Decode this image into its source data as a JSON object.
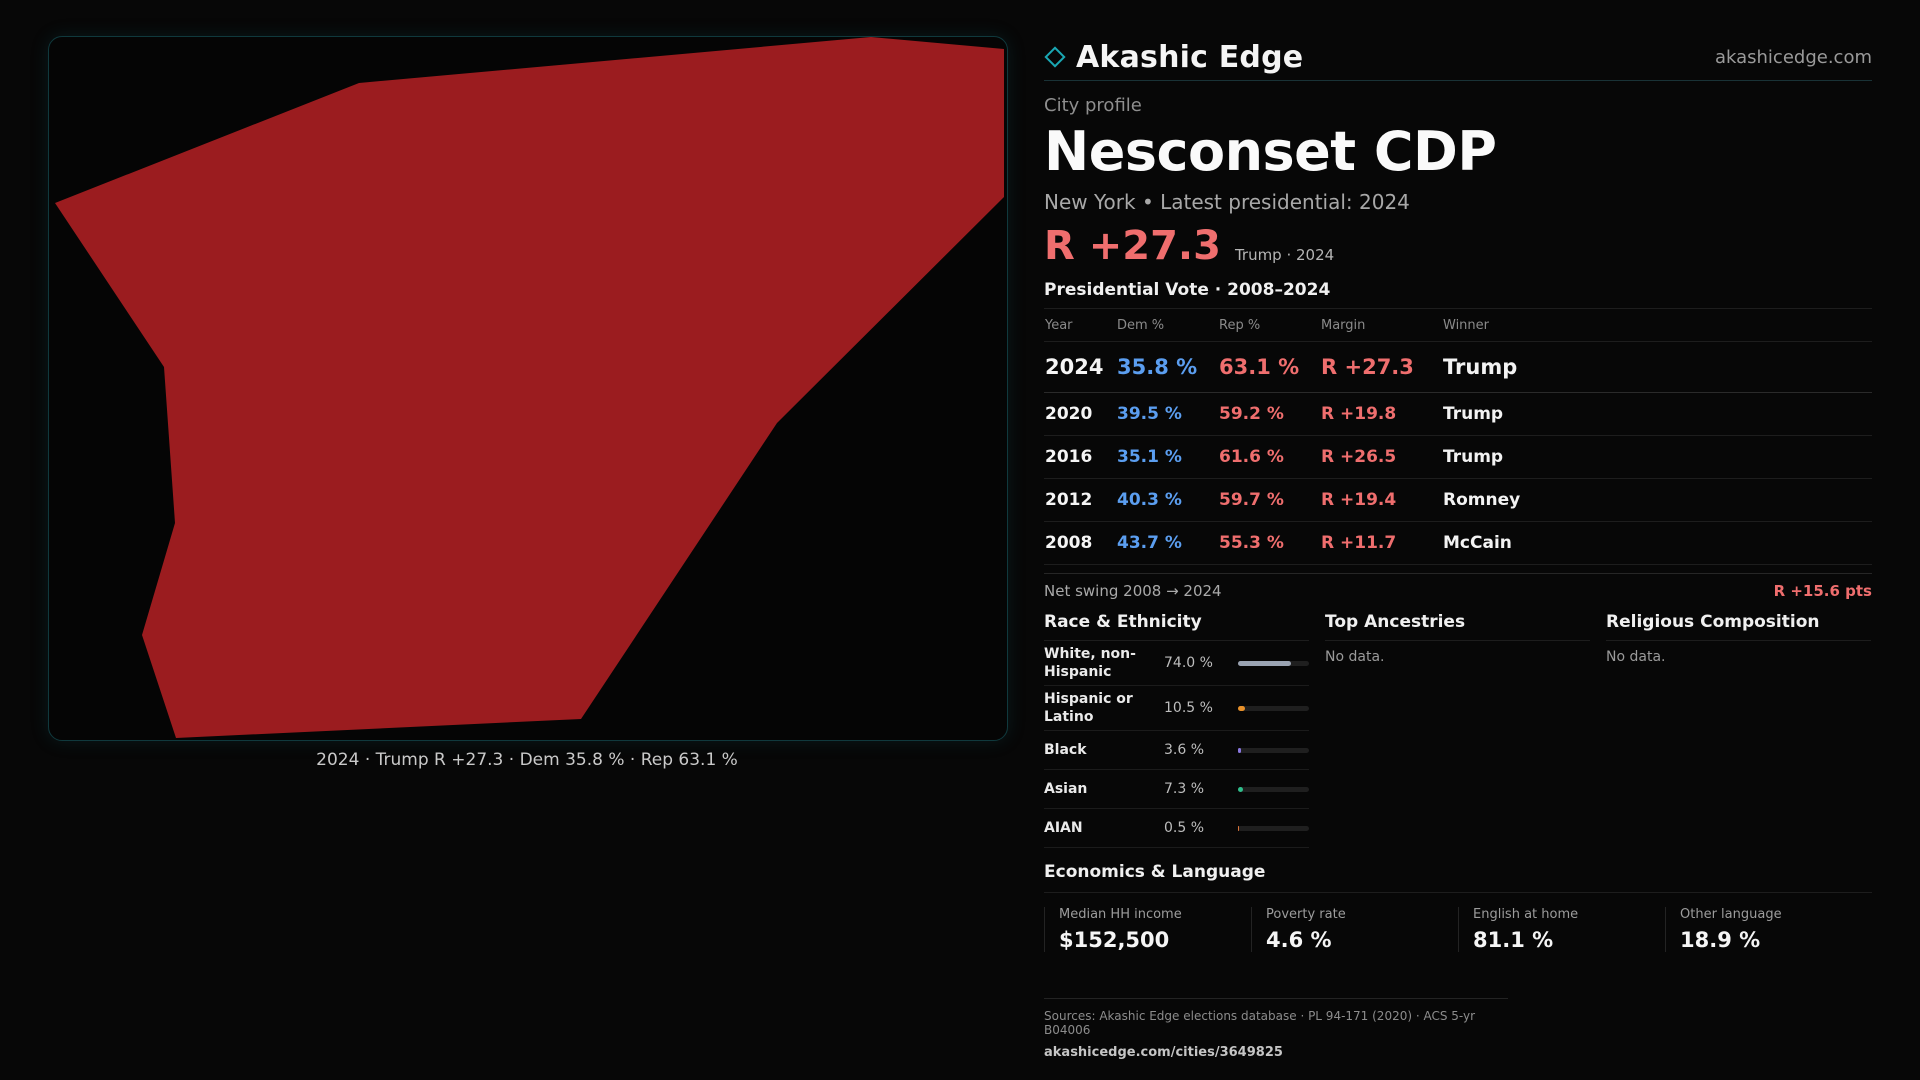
{
  "map": {
    "fill_color": "#9b1c1f",
    "caption": "2024 · Trump R +27.3 · Dem 35.8 % · Rep 63.1 %"
  },
  "header": {
    "brand": "Akashic Edge",
    "site": "akashicedge.com",
    "brand_icon": "diamond-outline-icon",
    "accent": "#1aa7b3"
  },
  "profile": {
    "kicker": "City profile",
    "title": "Nesconset CDP",
    "subline": "New York  • Latest presidential: 2024",
    "margin": "R +27.3",
    "margin_note": "Trump · 2024"
  },
  "votes": {
    "title": "Presidential Vote · 2008–2024",
    "headers": {
      "year": "Year",
      "dem": "Dem %",
      "rep": "Rep %",
      "margin": "Margin",
      "winner": "Winner"
    },
    "rows": [
      {
        "year": "2024",
        "dem": "35.8 %",
        "rep": "63.1 %",
        "margin": "R +27.3",
        "winner": "Trump"
      },
      {
        "year": "2020",
        "dem": "39.5 %",
        "rep": "59.2 %",
        "margin": "R +19.8",
        "winner": "Trump"
      },
      {
        "year": "2016",
        "dem": "35.1 %",
        "rep": "61.6 %",
        "margin": "R +26.5",
        "winner": "Trump"
      },
      {
        "year": "2012",
        "dem": "40.3 %",
        "rep": "59.7 %",
        "margin": "R +19.4",
        "winner": "Romney"
      },
      {
        "year": "2008",
        "dem": "43.7 %",
        "rep": "55.3 %",
        "margin": "R +11.7",
        "winner": "McCain"
      }
    ],
    "swing_label": "Net swing 2008 → 2024",
    "swing_value": "R +15.6 pts"
  },
  "race": {
    "title": "Race & Ethnicity",
    "rows": [
      {
        "label": "White, non-Hispanic",
        "pct": "74.0 %",
        "value": 74.0,
        "color": "#9aa3b2"
      },
      {
        "label": "Hispanic or Latino",
        "pct": "10.5 %",
        "value": 10.5,
        "color": "#e8912a"
      },
      {
        "label": "Black",
        "pct": "3.6 %",
        "value": 3.6,
        "color": "#8a78e0"
      },
      {
        "label": "Asian",
        "pct": "7.3 %",
        "value": 7.3,
        "color": "#2fbf8c"
      },
      {
        "label": "AIAN",
        "pct": "0.5 %",
        "value": 0.5,
        "color": "#d9733a"
      }
    ]
  },
  "ancestries": {
    "title": "Top Ancestries",
    "empty": "No data."
  },
  "religion": {
    "title": "Religious Composition",
    "empty": "No data."
  },
  "economics": {
    "title": "Economics & Language",
    "cells": [
      {
        "label": "Median HH income",
        "value": "$152,500"
      },
      {
        "label": "Poverty rate",
        "value": "4.6 %"
      },
      {
        "label": "English at home",
        "value": "81.1 %"
      },
      {
        "label": "Other language",
        "value": "18.9 %"
      }
    ]
  },
  "footer": {
    "sources": "Sources: Akashic Edge elections database · PL 94-171 (2020) · ACS 5-yr B04006",
    "url": "akashicedge.com/cities/3649825"
  }
}
